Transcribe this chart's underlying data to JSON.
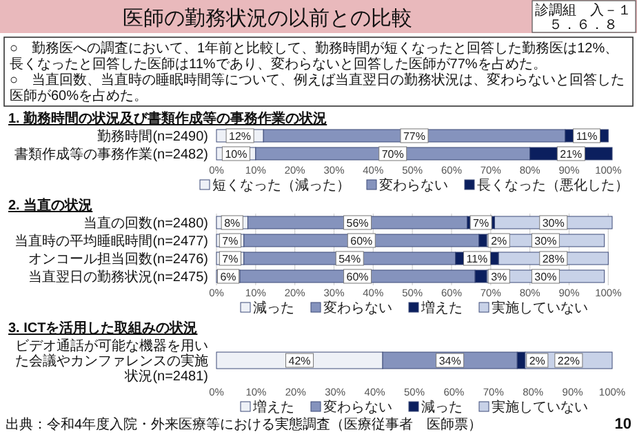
{
  "chart_data": [
    {
      "type": "other",
      "title": "医師の勤務状況の以前との比較",
      "annotations": [
        "診調組　入－１",
        "５．６．８",
        "○　勤務医への調査において、1年前と比較して、勤務時間が短くなったと回答した勤務医は12%、長くなったと回答した医師は11%であり、変わらないと回答した医師が77%を占めた。",
        "○　当直回数、当直時の睡眠時間等について、例えば当直翌日の勤務状況は、変わらないと回答した医師が60%を占めた。"
      ]
    },
    {
      "type": "bar",
      "orientation": "horizontal",
      "stacked": true,
      "legend": "bottom",
      "title": "1. 勤務時間の状況及び書類作成等の事務作業の状況",
      "categories": [
        "勤務時間(n=2490)",
        "書類作成等の事務作業(n=2482)"
      ],
      "xlim": [
        0,
        101
      ],
      "xticks": [
        {
          "value": 0,
          "label": "0%"
        },
        {
          "value": 10,
          "label": "10%"
        },
        {
          "value": 20,
          "label": "20%"
        },
        {
          "value": 30,
          "label": "30%"
        },
        {
          "value": 40,
          "label": "40%"
        },
        {
          "value": 50,
          "label": "50%"
        },
        {
          "value": 60,
          "label": "60%"
        },
        {
          "value": 70,
          "label": "70%"
        },
        {
          "value": 80,
          "label": "80%"
        },
        {
          "value": 90,
          "label": "90%"
        },
        {
          "value": 100,
          "label": "100%"
        }
      ],
      "series": [
        {
          "name": "短くなった（減った）",
          "color": "#eef1f7",
          "values": [
            12,
            10
          ],
          "value_labels": [
            "12%",
            "10%"
          ]
        },
        {
          "name": "変わらない",
          "color": "#8593bd",
          "values": [
            77,
            70
          ],
          "value_labels": [
            "77%",
            "70%"
          ]
        },
        {
          "name": "長くなった（悪化した）",
          "color": "#0b1f5e",
          "values": [
            11,
            21
          ],
          "value_labels": [
            "11%",
            "21%"
          ]
        }
      ]
    },
    {
      "type": "bar",
      "orientation": "horizontal",
      "stacked": true,
      "legend": "bottom",
      "grid": "x",
      "title": "2. 当直の状況",
      "categories": [
        "当直の回数(n=2480)",
        "当直時の平均睡眠時間(n=2477)",
        "オンコール担当回数(n=2476)",
        "当直翌日の勤務状況(n=2475)"
      ],
      "xlim": [
        0,
        101
      ],
      "xticks": [
        {
          "value": 0,
          "label": "0%"
        },
        {
          "value": 10,
          "label": "10%"
        },
        {
          "value": 20,
          "label": "20%"
        },
        {
          "value": 30,
          "label": "30%"
        },
        {
          "value": 40,
          "label": "40%"
        },
        {
          "value": 50,
          "label": "50%"
        },
        {
          "value": 60,
          "label": "60%"
        },
        {
          "value": 70,
          "label": "70%"
        },
        {
          "value": 80,
          "label": "80%"
        },
        {
          "value": 90,
          "label": "90%"
        },
        {
          "value": 100,
          "label": "100%"
        }
      ],
      "series": [
        {
          "name": "減った",
          "color": "#eef1f7",
          "values": [
            8,
            7,
            7,
            6
          ],
          "value_labels": [
            "8%",
            "7%",
            "7%",
            "6%"
          ]
        },
        {
          "name": "変わらない",
          "color": "#8593bd",
          "values": [
            56,
            60,
            54,
            60
          ],
          "value_labels": [
            "56%",
            "60%",
            "54%",
            "60%"
          ]
        },
        {
          "name": "増えた",
          "color": "#0b1f5e",
          "values": [
            7,
            2,
            11,
            3
          ],
          "value_labels": [
            "7%",
            "2%",
            "11%",
            "3%"
          ]
        },
        {
          "name": "実施していない",
          "color": "#c8d2e8",
          "values": [
            30,
            30,
            28,
            30
          ],
          "value_labels": [
            "30%",
            "30%",
            "28%",
            "30%"
          ]
        }
      ]
    },
    {
      "type": "bar",
      "orientation": "horizontal",
      "stacked": true,
      "legend": "bottom",
      "title": "3. ICTを活用した取組みの状況",
      "categories": [
        "ビデオ通話が可能な機器を用いた会議やカンファレンスの実施状況(n=2481)"
      ],
      "xlim": [
        0,
        100
      ],
      "xticks": [
        {
          "value": 0,
          "label": "0%"
        },
        {
          "value": 10,
          "label": "10%"
        },
        {
          "value": 20,
          "label": "20%"
        },
        {
          "value": 30,
          "label": "30%"
        },
        {
          "value": 40,
          "label": "40%"
        },
        {
          "value": 50,
          "label": "50%"
        },
        {
          "value": 60,
          "label": "60%"
        },
        {
          "value": 70,
          "label": "70%"
        },
        {
          "value": 80,
          "label": "80%"
        },
        {
          "value": 90,
          "label": "90%"
        },
        {
          "value": 100,
          "label": "100%"
        }
      ],
      "series": [
        {
          "name": "増えた",
          "color": "#eef1f7",
          "values": [
            42
          ],
          "value_labels": [
            "42%"
          ]
        },
        {
          "name": "変わらない",
          "color": "#8593bd",
          "values": [
            34
          ],
          "value_labels": [
            "34%"
          ]
        },
        {
          "name": "減った",
          "color": "#0b1f5e",
          "values": [
            2
          ],
          "value_labels": [
            "2%"
          ]
        },
        {
          "name": "実施していない",
          "color": "#c8d2e8",
          "values": [
            22
          ],
          "value_labels": [
            "22%"
          ]
        }
      ],
      "annotations": [
        "出典：令和4年度入院・外来医療等における実態調査（医療従事者　医師票）",
        "10"
      ]
    }
  ]
}
